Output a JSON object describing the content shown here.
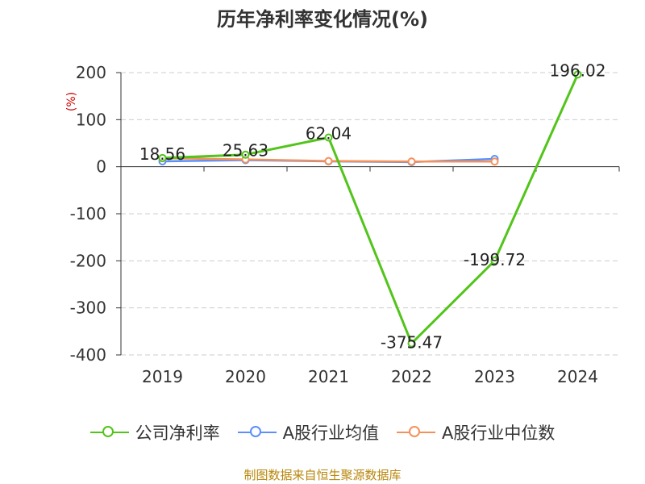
{
  "title": "历年净利率变化情况(%)",
  "source": "制图数据来自恒生聚源数据库",
  "legend": [
    {
      "label": "公司净利率",
      "color": "#52c41a"
    },
    {
      "label": "A股行业均值",
      "color": "#5b8ff9"
    },
    {
      "label": "A股行业中位数",
      "color": "#f4915a"
    }
  ],
  "chart_data": {
    "type": "line",
    "title": "历年净利率变化情况(%)",
    "ylabel": "(%)",
    "xlabel": "",
    "categories": [
      "2019",
      "2020",
      "2021",
      "2022",
      "2023",
      "2024"
    ],
    "ylim": [
      -400,
      200
    ],
    "yticks": [
      200,
      100,
      0,
      -100,
      -200,
      -300,
      -400
    ],
    "grid": true,
    "legend_position": "bottom",
    "series": [
      {
        "name": "公司净利率",
        "color": "#52c41a",
        "values": [
          18.56,
          25.63,
          62.04,
          -375.47,
          -199.72,
          196.02
        ],
        "labels": [
          "18.56",
          "25.63",
          "62.04",
          "-375.47",
          "-199.72",
          "196.02"
        ]
      },
      {
        "name": "A股行业均值",
        "color": "#5b8ff9",
        "values": [
          11.5,
          14.0,
          11.5,
          10.0,
          16.5,
          null
        ]
      },
      {
        "name": "A股行业中位数",
        "color": "#f4915a",
        "values": [
          18.0,
          15.5,
          12.0,
          11.0,
          11.0,
          null
        ]
      }
    ]
  }
}
